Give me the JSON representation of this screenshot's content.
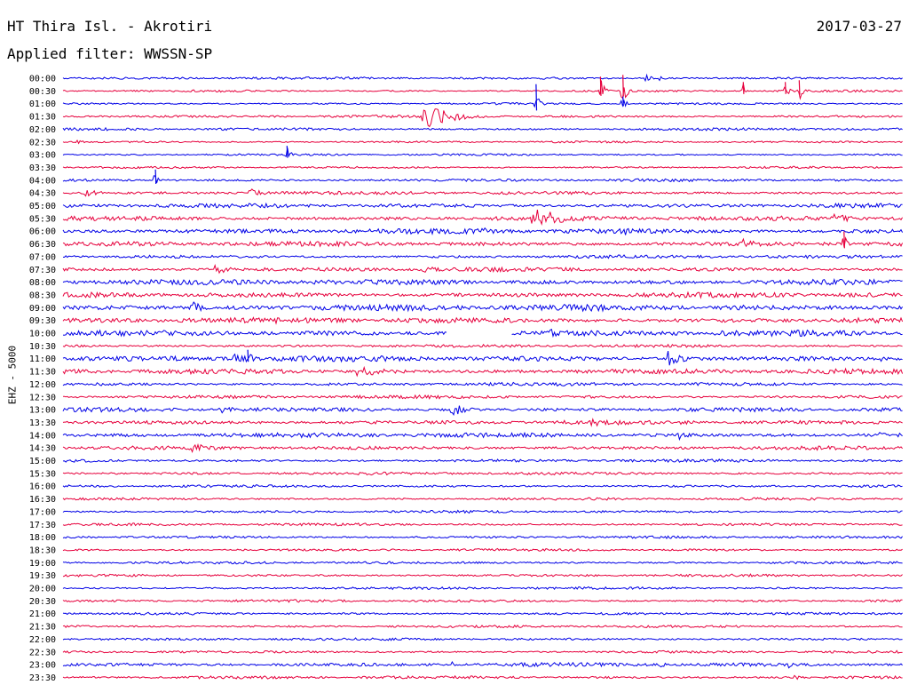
{
  "header": {
    "title": "HT Thira Isl. - Akrotiri",
    "date": "2017-03-27",
    "filter": "Applied filter: WWSSN-SP"
  },
  "channel_label": "EHZ - 5000",
  "chart_data": {
    "type": "line",
    "title": "HT Thira Isl. - Akrotiri",
    "subtitle": "Applied filter: WWSSN-SP",
    "ylabel": "EHZ - 5000",
    "row_labels": [
      "00:00",
      "00:30",
      "01:00",
      "01:30",
      "02:00",
      "02:30",
      "03:00",
      "03:30",
      "04:00",
      "04:30",
      "05:00",
      "05:30",
      "06:00",
      "06:30",
      "07:00",
      "07:30",
      "08:00",
      "08:30",
      "09:00",
      "09:30",
      "10:00",
      "10:30",
      "11:00",
      "11:30",
      "12:00",
      "12:30",
      "13:00",
      "13:30",
      "14:00",
      "14:30",
      "15:00",
      "15:30",
      "16:00",
      "16:30",
      "17:00",
      "17:30",
      "18:00",
      "18:30",
      "19:00",
      "19:30",
      "20:00",
      "20:30",
      "21:00",
      "21:30",
      "22:00",
      "22:30",
      "23:00",
      "23:30"
    ],
    "trace_colors": [
      "#0000e6",
      "#e6003c"
    ],
    "row_noise": [
      1.2,
      1.0,
      1.0,
      1.2,
      1.3,
      1.0,
      1.0,
      1.0,
      1.3,
      1.6,
      2.0,
      2.2,
      2.4,
      2.2,
      1.6,
      2.0,
      2.6,
      2.4,
      3.0,
      2.6,
      2.8,
      1.4,
      2.6,
      2.4,
      1.6,
      1.6,
      2.0,
      2.0,
      2.2,
      1.8,
      1.4,
      1.4,
      1.2,
      1.2,
      1.2,
      1.2,
      1.2,
      1.2,
      1.2,
      1.2,
      1.2,
      1.2,
      1.2,
      1.2,
      1.2,
      1.2,
      1.8,
      1.4
    ],
    "data_gap": {
      "row": 20,
      "from_minute": 13.7,
      "to_minute": 16.0
    },
    "events": [
      {
        "row": 0,
        "minute": 20.8,
        "amplitude": 6,
        "duration_min": 0.3
      },
      {
        "row": 0,
        "minute": 21.3,
        "amplitude": 4,
        "duration_min": 0.3
      },
      {
        "row": 1,
        "minute": 19.2,
        "amplitude": 16,
        "duration_min": 0.2
      },
      {
        "row": 1,
        "minute": 20.0,
        "amplitude": 18,
        "duration_min": 0.2
      },
      {
        "row": 1,
        "minute": 24.3,
        "amplitude": 10,
        "duration_min": 0.2
      },
      {
        "row": 1,
        "minute": 25.8,
        "amplitude": 10,
        "duration_min": 0.2
      },
      {
        "row": 1,
        "minute": 26.3,
        "amplitude": 12,
        "duration_min": 0.2
      },
      {
        "row": 2,
        "minute": 16.9,
        "amplitude": 22,
        "duration_min": 0.2
      },
      {
        "row": 2,
        "minute": 20.0,
        "amplitude": 8,
        "duration_min": 0.2
      },
      {
        "row": 3,
        "minute": 12.9,
        "amplitude": 14,
        "duration_min": 1.6
      },
      {
        "row": 5,
        "minute": 0.5,
        "amplitude": 4,
        "duration_min": 0.3
      },
      {
        "row": 6,
        "minute": 8.0,
        "amplitude": 10,
        "duration_min": 0.2
      },
      {
        "row": 8,
        "minute": 3.3,
        "amplitude": 12,
        "duration_min": 0.2
      },
      {
        "row": 9,
        "minute": 0.8,
        "amplitude": 4,
        "duration_min": 1.2
      },
      {
        "row": 9,
        "minute": 6.7,
        "amplitude": 6,
        "duration_min": 0.8
      },
      {
        "row": 11,
        "minute": 16.8,
        "amplitude": 14,
        "duration_min": 1.8
      },
      {
        "row": 11,
        "minute": 27.5,
        "amplitude": 5,
        "duration_min": 2.2
      },
      {
        "row": 12,
        "minute": 14.9,
        "amplitude": 5,
        "duration_min": 1.4
      },
      {
        "row": 12,
        "minute": 20.0,
        "amplitude": 6,
        "duration_min": 0.6
      },
      {
        "row": 13,
        "minute": 24.3,
        "amplitude": 6,
        "duration_min": 1.3
      },
      {
        "row": 13,
        "minute": 27.9,
        "amplitude": 14,
        "duration_min": 0.2
      },
      {
        "row": 15,
        "minute": 5.4,
        "amplitude": 6,
        "duration_min": 1.0
      },
      {
        "row": 15,
        "minute": 12.8,
        "amplitude": 5,
        "duration_min": 1.0
      },
      {
        "row": 18,
        "minute": 4.6,
        "amplitude": 8,
        "duration_min": 0.8
      },
      {
        "row": 18,
        "minute": 24.2,
        "amplitude": 5,
        "duration_min": 0.4
      },
      {
        "row": 19,
        "minute": 8.8,
        "amplitude": 5,
        "duration_min": 0.6
      },
      {
        "row": 20,
        "minute": 17.4,
        "amplitude": 5,
        "duration_min": 0.8
      },
      {
        "row": 20,
        "minute": 21.8,
        "amplitude": 5,
        "duration_min": 0.8
      },
      {
        "row": 22,
        "minute": 6.0,
        "amplitude": 8,
        "duration_min": 0.8
      },
      {
        "row": 22,
        "minute": 6.6,
        "amplitude": 10,
        "duration_min": 0.3
      },
      {
        "row": 22,
        "minute": 21.6,
        "amplitude": 9,
        "duration_min": 0.9
      },
      {
        "row": 22,
        "minute": 29.2,
        "amplitude": 5,
        "duration_min": 0.5
      },
      {
        "row": 23,
        "minute": 10.5,
        "amplitude": 6,
        "duration_min": 2.0
      },
      {
        "row": 26,
        "minute": 5.6,
        "amplitude": 6,
        "duration_min": 0.8
      },
      {
        "row": 26,
        "minute": 13.9,
        "amplitude": 8,
        "duration_min": 0.9
      },
      {
        "row": 27,
        "minute": 18.8,
        "amplitude": 5,
        "duration_min": 1.8
      },
      {
        "row": 28,
        "minute": 22.0,
        "amplitude": 5,
        "duration_min": 0.8
      },
      {
        "row": 28,
        "minute": 29.0,
        "amplitude": 6,
        "duration_min": 0.6
      },
      {
        "row": 29,
        "minute": 4.6,
        "amplitude": 9,
        "duration_min": 0.6
      },
      {
        "row": 46,
        "minute": 13.9,
        "amplitude": 5,
        "duration_min": 0.5
      },
      {
        "row": 46,
        "minute": 21.3,
        "amplitude": 4,
        "duration_min": 0.4
      },
      {
        "row": 46,
        "minute": 25.9,
        "amplitude": 5,
        "duration_min": 0.4
      },
      {
        "row": 47,
        "minute": 26.1,
        "amplitude": 4,
        "duration_min": 0.5
      }
    ]
  }
}
